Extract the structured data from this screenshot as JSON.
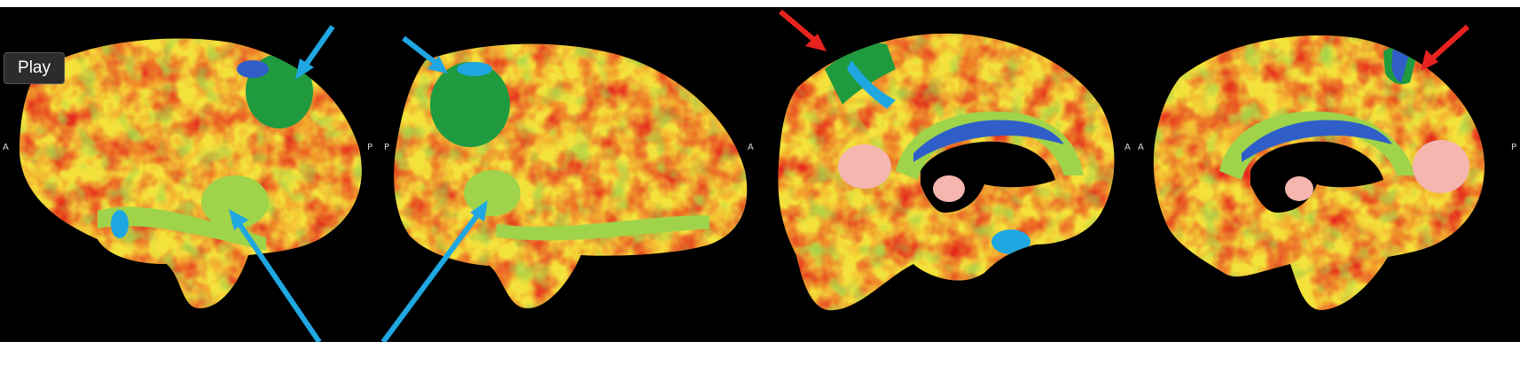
{
  "controls": {
    "play_label": "Play"
  },
  "orientation": {
    "panel1_left": "A",
    "panel1_right": "P",
    "panel2_left": "P",
    "panel2_right": "A",
    "panel3_left": "A",
    "panel3_right": "A",
    "panel4_left": "A",
    "panel4_right": "P"
  },
  "colors": {
    "background": "#000000",
    "arrow_blue": "#1fa7e1",
    "arrow_red": "#e8231f",
    "map_red": "#e52b1c",
    "map_orange": "#f39a2a",
    "map_yellow": "#f4e23c",
    "map_lightgreen": "#9fd34a",
    "map_green": "#1f9a3f",
    "map_blue": "#2f5ec9",
    "map_pink": "#f5b6b0"
  },
  "scene": {
    "views": [
      "lateral-left",
      "lateral-right",
      "medial-left",
      "medial-right"
    ],
    "arrows": [
      {
        "color": "blue",
        "target": "panel1-parietal"
      },
      {
        "color": "blue",
        "target": "panel2-parietal"
      },
      {
        "color": "blue",
        "target": "panel1-temporal"
      },
      {
        "color": "blue",
        "target": "panel2-temporal"
      },
      {
        "color": "red",
        "target": "panel3-precuneus"
      },
      {
        "color": "red",
        "target": "panel4-precuneus"
      }
    ]
  }
}
